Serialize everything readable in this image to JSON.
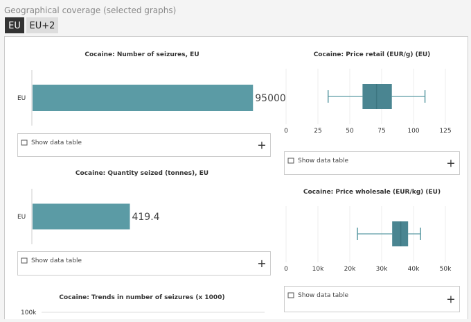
{
  "header": {
    "title": "Geographical coverage (selected graphs)",
    "tabs": [
      "EU",
      "EU+2"
    ]
  },
  "chart_data": [
    {
      "type": "hbar",
      "title": "Cocaine: Number of seizures, EU",
      "categories": [
        "EU"
      ],
      "values": [
        95000
      ],
      "color": "#5b9ba5",
      "xlim": [
        0,
        100000
      ],
      "table_toggle": "Show data table"
    },
    {
      "type": "hbar",
      "title": "Cocaine: Quantity seized (tonnes), EU",
      "categories": [
        "EU"
      ],
      "values": [
        419.4
      ],
      "color": "#5b9ba5",
      "xlim": [
        0,
        1000
      ],
      "table_toggle": "Show data table"
    },
    {
      "type": "boxplot",
      "title": "Cocaine: Price retail (EUR/g) (EU)",
      "box": {
        "low": 33,
        "q1": 60,
        "median": 71,
        "q3": 83,
        "high": 109
      },
      "color": "#4a8591",
      "xlim": [
        0,
        125
      ],
      "xticks": [
        0,
        25,
        50,
        75,
        100,
        125
      ],
      "table_toggle": "Show data table"
    },
    {
      "type": "boxplot",
      "title": "Cocaine: Price wholesale (EUR/kg) (EU)",
      "box": {
        "low": 22400,
        "q1": 33300,
        "median": 36000,
        "q3": 38300,
        "high": 42200
      },
      "color": "#4a8591",
      "xlim": [
        0,
        50000
      ],
      "xticks": [
        0,
        {
          "value": 10000,
          "label": "10k"
        },
        {
          "value": 20000,
          "label": "20k"
        },
        {
          "value": 30000,
          "label": "30k"
        },
        {
          "value": 40000,
          "label": "40k"
        },
        {
          "value": 50000,
          "label": "50k"
        }
      ],
      "table_toggle": "Show data table"
    },
    {
      "type": "line",
      "title": "Cocaine: Trends in number of seizures (x 1000)",
      "yticks": [
        {
          "value": 100000,
          "label": "100k"
        }
      ]
    }
  ]
}
